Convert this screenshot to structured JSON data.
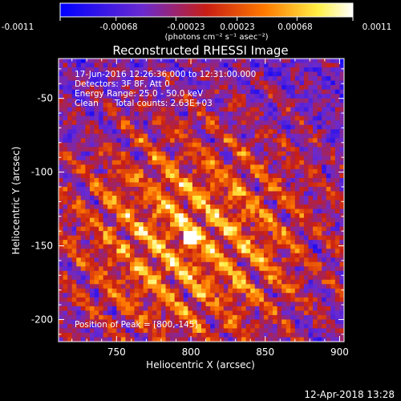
{
  "colorbar": {
    "tick_labels": [
      "-0.0011",
      "-0.00068",
      "-0.00023",
      "0.00023",
      "0.00068",
      "0.0011"
    ],
    "tick_values": [
      -0.0011,
      -0.00068,
      -0.00023,
      0.00023,
      0.00068,
      0.0011
    ],
    "range": [
      -0.0011,
      0.0011
    ],
    "unit_label": "(photons cm⁻² s⁻¹ asec⁻²)"
  },
  "image": {
    "title": "Reconstructed RHESSI Image",
    "info_lines": [
      "17-Jun-2016 12:26:36.000 to 12:31:00.000",
      "Detectors: 3F 8F, Att 0",
      "Energy Range: 25.0 - 50.0 keV",
      "Clean      Total counts: 2.63E+03"
    ],
    "peak_label": "Position of Peak = [800,-145]",
    "footer_date": "12-Apr-2018 13:28",
    "colors": {
      "background": "#000000",
      "text": "#ffffff",
      "colormap": [
        "#0000ff",
        "#6a2ad0",
        "#c81e14",
        "#ff7a00",
        "#ffee44",
        "#ffffff"
      ]
    }
  },
  "chart_data": {
    "type": "heatmap",
    "title": "Reconstructed RHESSI Image",
    "xlabel": "Heliocentric X (arcsec)",
    "ylabel": "Heliocentric Y (arcsec)",
    "xlim": [
      711,
      903
    ],
    "ylim": [
      -215,
      -23
    ],
    "x_ticks": [
      750,
      800,
      850,
      900
    ],
    "y_ticks": [
      -50,
      -100,
      -150,
      -200
    ],
    "peak": [
      800,
      -145
    ],
    "value_range": [
      -0.0011,
      0.0011
    ]
  }
}
